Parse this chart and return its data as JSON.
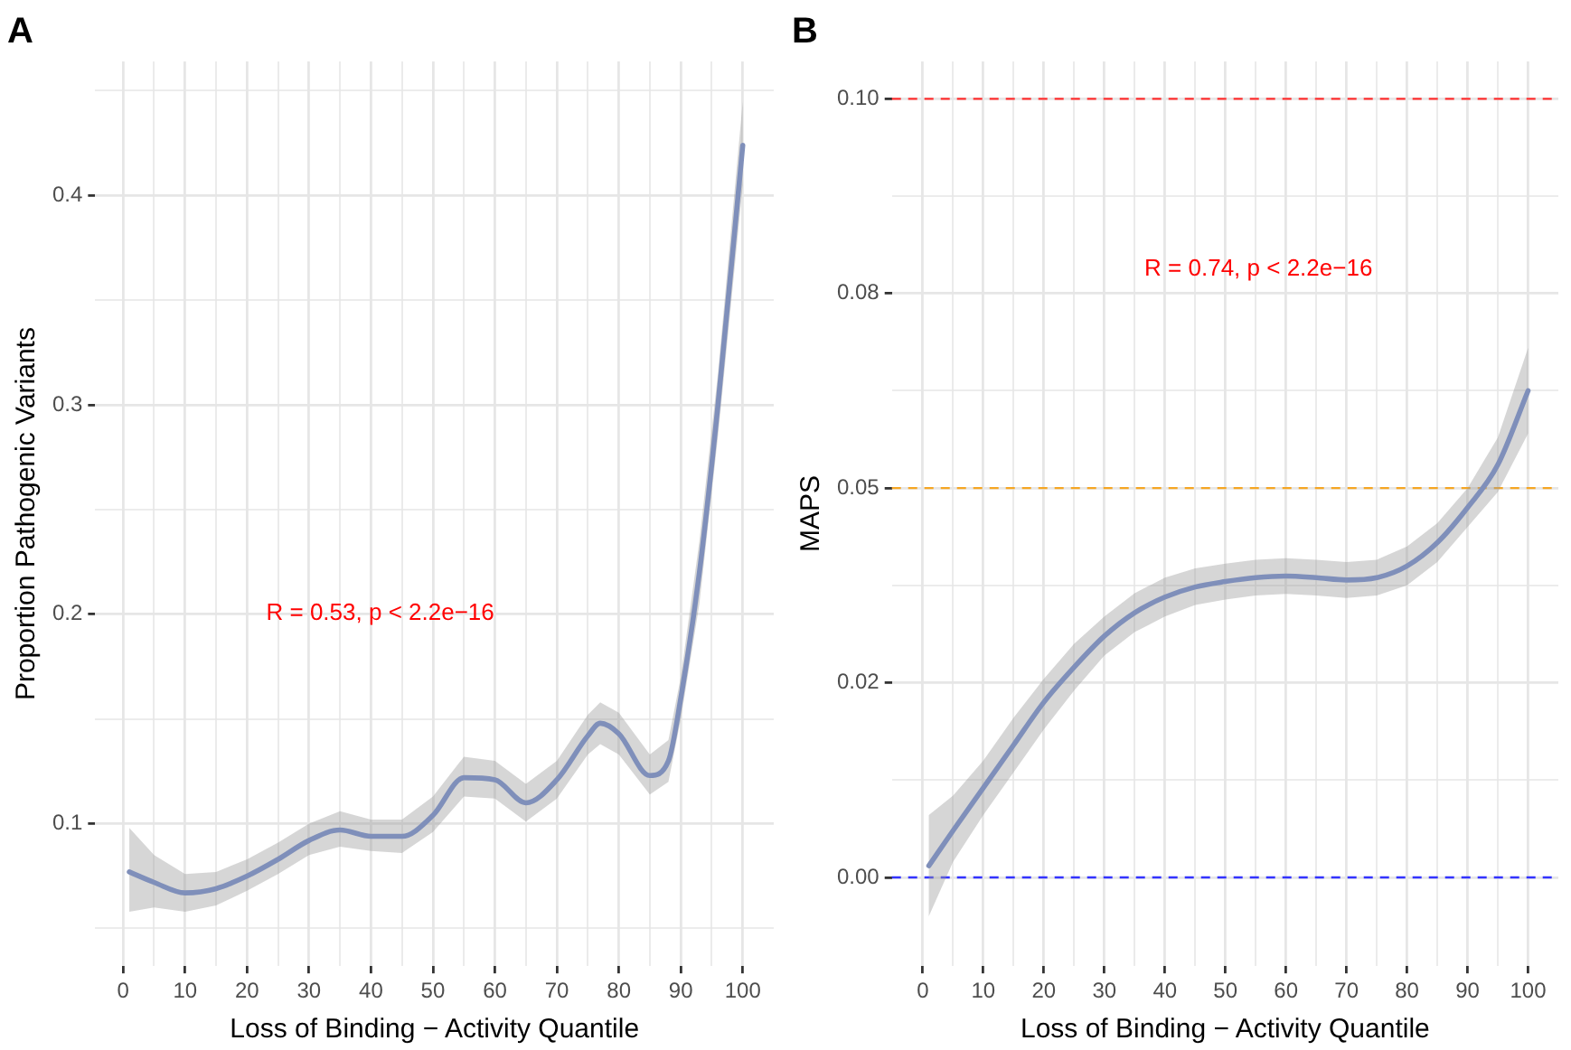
{
  "chart_data": [
    {
      "type": "line",
      "title": "A",
      "xlabel": "Loss of Binding − Activity Quantile",
      "ylabel": "Proportion Pathogenic Variants",
      "annotations": [
        "R = 0.53, p < 2.2e−16"
      ],
      "grid": true,
      "marker": "none",
      "line_style": "solid",
      "legend": false,
      "xlim": [
        -4.5,
        105
      ],
      "ylim": [
        0.032,
        0.464
      ],
      "xticks": [
        0,
        {
          "value": 5,
          "label": null
        },
        10,
        {
          "value": 15,
          "label": null
        },
        20,
        {
          "value": 25,
          "label": null
        },
        30,
        {
          "value": 35,
          "label": null
        },
        40,
        {
          "value": 45,
          "label": null
        },
        50,
        {
          "value": 55,
          "label": null
        },
        60,
        {
          "value": 65,
          "label": null
        },
        70,
        {
          "value": 75,
          "label": null
        },
        80,
        {
          "value": 85,
          "label": null
        },
        90,
        {
          "value": 95,
          "label": null
        },
        100
      ],
      "yticks": [
        {
          "value": 0.05,
          "label": null
        },
        0.1,
        {
          "value": 0.15,
          "label": null
        },
        0.2,
        {
          "value": 0.25,
          "label": null
        },
        0.3,
        {
          "value": 0.35,
          "label": null
        },
        0.4,
        {
          "value": 0.45,
          "label": null
        }
      ],
      "series": [
        {
          "color": "#7f8fba",
          "x": [
            1,
            5,
            10,
            15,
            20,
            25,
            30,
            35,
            40,
            45,
            50,
            55,
            60,
            65,
            70,
            75,
            77,
            80,
            85,
            88,
            90,
            93,
            96,
            100
          ],
          "values": [
            0.077,
            0.072,
            0.067,
            0.069,
            0.075,
            0.083,
            0.092,
            0.097,
            0.094,
            0.094,
            0.104,
            0.122,
            0.121,
            0.11,
            0.121,
            0.142,
            0.148,
            0.143,
            0.123,
            0.13,
            0.16,
            0.22,
            0.3,
            0.424
          ],
          "lower": [
            0.058,
            0.06,
            0.058,
            0.061,
            0.068,
            0.076,
            0.085,
            0.089,
            0.087,
            0.086,
            0.096,
            0.113,
            0.112,
            0.101,
            0.112,
            0.133,
            0.138,
            0.133,
            0.114,
            0.12,
            0.15,
            0.205,
            0.285,
            0.405
          ],
          "upper": [
            0.098,
            0.085,
            0.076,
            0.077,
            0.083,
            0.091,
            0.1,
            0.106,
            0.102,
            0.102,
            0.113,
            0.132,
            0.13,
            0.119,
            0.13,
            0.152,
            0.158,
            0.153,
            0.133,
            0.14,
            0.17,
            0.235,
            0.315,
            0.445
          ]
        }
      ]
    },
    {
      "type": "line",
      "title": "B",
      "xlabel": "Loss of Binding − Activity Quantile",
      "ylabel": "MAPS",
      "annotations": [
        "R = 0.74, p < 2.2e−16"
      ],
      "grid": true,
      "marker": "none",
      "line_style": "solid",
      "legend": false,
      "xlim": [
        -5.1,
        105
      ],
      "ylim": [
        -0.0114,
        0.1048
      ],
      "xticks": [
        0,
        {
          "value": 5,
          "label": null
        },
        10,
        {
          "value": 15,
          "label": null
        },
        20,
        {
          "value": 25,
          "label": null
        },
        30,
        {
          "value": 35,
          "label": null
        },
        40,
        {
          "value": 45,
          "label": null
        },
        50,
        {
          "value": 55,
          "label": null
        },
        60,
        {
          "value": 65,
          "label": null
        },
        70,
        {
          "value": 75,
          "label": null
        },
        80,
        {
          "value": 85,
          "label": null
        },
        90,
        {
          "value": 95,
          "label": null
        },
        100
      ],
      "yticks": [
        {
          "value": 0,
          "label": "0.00"
        },
        {
          "value": 0.0125,
          "label": null
        },
        {
          "value": 0.025,
          "label": "0.02"
        },
        {
          "value": 0.0375,
          "label": null
        },
        {
          "value": 0.05,
          "label": "0.05"
        },
        {
          "value": 0.0625,
          "label": null
        },
        {
          "value": 0.075,
          "label": "0.08"
        },
        {
          "value": 0.0875,
          "label": null
        },
        {
          "value": 0.1,
          "label": "0.10"
        }
      ],
      "ref_lines": [
        {
          "axis": "y",
          "value": 0.1,
          "color": "#ff3030",
          "line_style": "dashed"
        },
        {
          "axis": "y",
          "value": 0.05,
          "color": "#f5a623",
          "line_style": "dashed"
        },
        {
          "axis": "y",
          "value": 0,
          "color": "#3333ff",
          "line_style": "dashed"
        }
      ],
      "series": [
        {
          "color": "#7f8fba",
          "x": [
            1,
            5,
            10,
            15,
            20,
            25,
            30,
            35,
            40,
            45,
            50,
            55,
            60,
            65,
            70,
            75,
            80,
            85,
            90,
            95,
            100
          ],
          "values": [
            0.0015,
            0.006,
            0.0115,
            0.017,
            0.0225,
            0.027,
            0.031,
            0.034,
            0.036,
            0.0373,
            0.038,
            0.0385,
            0.0387,
            0.0385,
            0.0382,
            0.0385,
            0.04,
            0.043,
            0.0475,
            0.053,
            0.0625
          ],
          "lower": [
            -0.005,
            0.002,
            0.008,
            0.0135,
            0.019,
            0.024,
            0.0285,
            0.0315,
            0.0335,
            0.035,
            0.0357,
            0.0362,
            0.0364,
            0.0362,
            0.0359,
            0.0362,
            0.0375,
            0.0405,
            0.045,
            0.0495,
            0.057
          ],
          "upper": [
            0.008,
            0.0105,
            0.015,
            0.0205,
            0.0255,
            0.03,
            0.0335,
            0.0365,
            0.0385,
            0.0397,
            0.0403,
            0.0408,
            0.041,
            0.0408,
            0.0405,
            0.0408,
            0.0425,
            0.0455,
            0.05,
            0.0565,
            0.068
          ]
        }
      ]
    }
  ]
}
